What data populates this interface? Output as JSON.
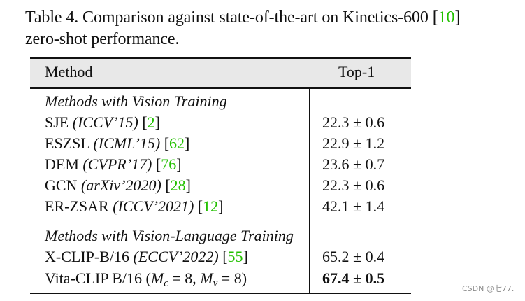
{
  "caption": {
    "prefix": "Table 4. Comparison against state-of-the-art on Kinetics-600 [",
    "ref": "10",
    "suffix": "]",
    "line2": "zero-shot performance."
  },
  "table": {
    "headers": {
      "method": "Method",
      "score": "Top-1"
    },
    "sections": [
      {
        "title": "Methods with Vision Training",
        "rows": [
          {
            "name": "SJE",
            "venue": "(ICCV’15)",
            "ref": "2",
            "score": "22.3 ± 0.6"
          },
          {
            "name": "ESZSL",
            "venue": "(ICML’15)",
            "ref": "62",
            "score": "22.9 ± 1.2"
          },
          {
            "name": "DEM",
            "venue": "(CVPR’17)",
            "ref": "76",
            "score": "23.6 ± 0.7"
          },
          {
            "name": "GCN",
            "venue": "(arXiv’2020)",
            "ref": "28",
            "score": "22.3 ± 0.6"
          },
          {
            "name": "ER-ZSAR",
            "venue": "(ICCV’2021)",
            "ref": "12",
            "score": "42.1 ± 1.4"
          }
        ]
      },
      {
        "title": "Methods with Vision-Language Training",
        "rows": [
          {
            "name": "X-CLIP-B/16",
            "venue": "(ECCV’2022)",
            "ref": "55",
            "score": "65.2 ± 0.4"
          },
          {
            "name": "Vita-CLIP B/16",
            "params": {
              "open": "(",
              "m1": "M",
              "s1": "c",
              "eq1": " = 8, ",
              "m2": "M",
              "s2": "v",
              "eq2": " = 8)"
            },
            "score": "67.4 ± 0.5"
          }
        ]
      }
    ]
  },
  "watermark": "CSDN @七77."
}
